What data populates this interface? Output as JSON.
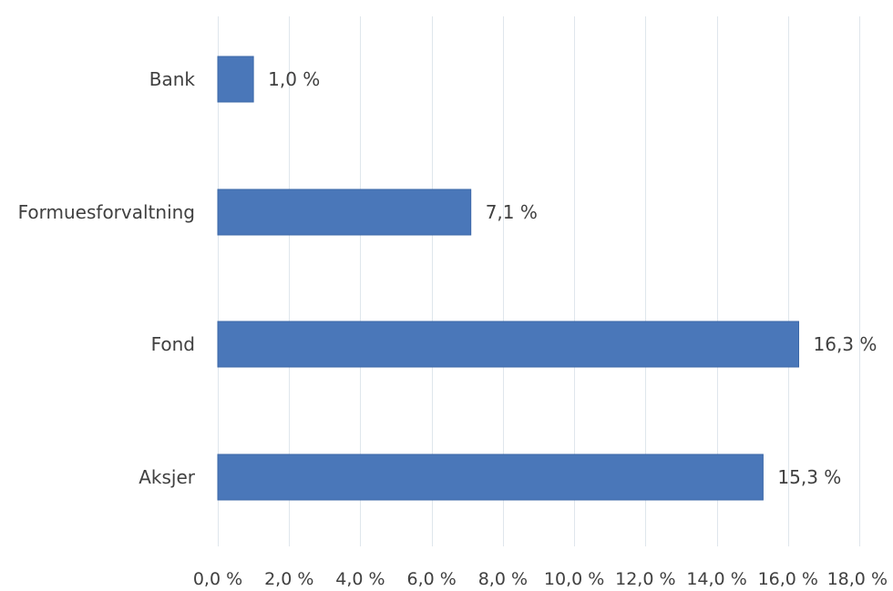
{
  "chart_data": {
    "type": "bar",
    "orientation": "horizontal",
    "title": "",
    "xlabel": "",
    "ylabel": "",
    "categories": [
      "Bank",
      "Formuesforvaltning",
      "Fond",
      "Aksjer"
    ],
    "values": [
      1.0,
      7.1,
      16.3,
      15.3
    ],
    "value_labels": [
      "1,0 %",
      "7,1 %",
      "16,3 %",
      "15,3 %"
    ],
    "xlim": [
      0,
      18
    ],
    "x_ticks": [
      0,
      2,
      4,
      6,
      8,
      10,
      12,
      14,
      16,
      18
    ],
    "x_tick_labels": [
      "0,0 %",
      "2,0 %",
      "4,0 %",
      "6,0 %",
      "8,0 %",
      "10,0 %",
      "12,0 %",
      "14,0 %",
      "16,0 %",
      "18,0 %"
    ],
    "grid": true,
    "legend": "none",
    "bar_color": "#4a77b9"
  }
}
